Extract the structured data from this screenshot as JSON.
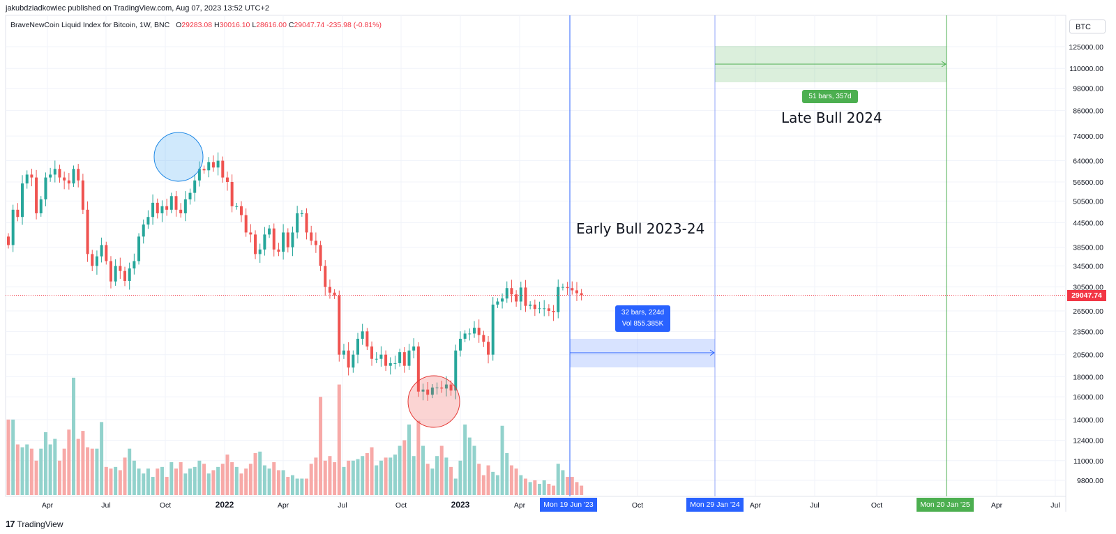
{
  "header": {
    "publisher_line": "jakubdziadkowiec published on TradingView.com, Aug 07, 2023 13:52 UTC+2",
    "symbol_line": "BraveNewCoin Liquid Index for Bitcoin, 1W, BNC",
    "ohlc": {
      "o_label": "O",
      "o": "29283.08",
      "h_label": "H",
      "h": "30016.10",
      "l_label": "L",
      "l": "28616.00",
      "c_label": "C",
      "c": "29047.74",
      "change": "-235.98 (-0.81%)"
    },
    "currency_button": "BTC"
  },
  "footer": {
    "brand": "TradingView",
    "logo_glyph": "17"
  },
  "annotations": {
    "early_bull": "Early Bull 2023-24",
    "late_bull": "Late Bull 2024",
    "early_range_line1": "32 bars, 224d",
    "early_range_line2": "Vol 855.385K",
    "late_range": "51 bars, 357d"
  },
  "date_markers": {
    "start": "Mon 19 Jun '23",
    "mid": "Mon 29 Jan '24",
    "end": "Mon 20 Jan '25"
  },
  "colors": {
    "up": "#26a69a",
    "down": "#ef5350",
    "vol_up": "#92d2cc",
    "vol_down": "#f7a9a7",
    "blue": "#2962ff",
    "green": "#4caf50",
    "grid": "#f0f3fa",
    "price_line": "#f23645"
  },
  "chart_data": {
    "type": "candlestick",
    "title": "BraveNewCoin Liquid Index for Bitcoin, 1W, BNC",
    "y_scale": "log",
    "y_ticks": [
      125000,
      110000,
      98000,
      86000,
      74000,
      64000,
      56500,
      50500,
      44500,
      38500,
      34500,
      30500,
      26500,
      23500,
      20500,
      18000,
      16000,
      14000,
      12400,
      11000,
      9800
    ],
    "y_tick_labels": [
      "125000.00",
      "110000.00",
      "98000.00",
      "86000.00",
      "74000.00",
      "64000.00",
      "56500.00",
      "50500.00",
      "44500.00",
      "38500.00",
      "34500.00",
      "30500.00",
      "26500.00",
      "23500.00",
      "20500.00",
      "18000.00",
      "16000.00",
      "14000.00",
      "12400.00",
      "11000.00",
      "9800.00"
    ],
    "x_tick_labels": [
      "Apr",
      "Jul",
      "Oct",
      "2022",
      "Apr",
      "Jul",
      "Oct",
      "2023",
      "Apr",
      "Oct",
      "Apr",
      "Jul",
      "Oct",
      "Apr",
      "Jul"
    ],
    "last_price": "29047.74",
    "weekly_closes": [
      39000,
      48000,
      46000,
      56000,
      59000,
      58000,
      47000,
      51000,
      58000,
      59000,
      61000,
      58000,
      57000,
      56000,
      61000,
      57000,
      48000,
      37000,
      34500,
      36500,
      39000,
      35500,
      31500,
      34500,
      33500,
      31600,
      34000,
      35500,
      41000,
      44000,
      46000,
      50000,
      47000,
      49000,
      48000,
      52000,
      48000,
      47000,
      51000,
      53000,
      57000,
      61000,
      60500,
      63500,
      61500,
      64000,
      58000,
      56500,
      49000,
      49000,
      46500,
      42000,
      41500,
      37000,
      38000,
      41500,
      43000,
      38000,
      37500,
      42000,
      38500,
      42000,
      47000,
      47000,
      42000,
      40000,
      39000,
      34500,
      30500,
      29500,
      29000,
      20500,
      21000,
      19000,
      20500,
      22500,
      23500,
      21500,
      20000,
      20000,
      20500,
      19200,
      19500,
      19500,
      20800,
      19200,
      21000,
      21500,
      16500,
      16700,
      16200,
      16900,
      16900,
      16800,
      17200,
      16600,
      21000,
      22500,
      23200,
      23200,
      24000,
      23000,
      22100,
      20500,
      27500,
      28000,
      28500,
      30300,
      29200,
      28000,
      30400,
      27300,
      27500,
      26800,
      26900,
      26900,
      26500,
      26300,
      30500,
      30500,
      30300,
      29900,
      29400,
      29047
    ],
    "volumes": [
      14000,
      14000,
      12100,
      11900,
      12100,
      11800,
      11000,
      11800,
      13000,
      12100,
      12500,
      11000,
      11800,
      13200,
      17900,
      12500,
      13100,
      11900,
      11800,
      11800,
      13800,
      10600,
      10500,
      10600,
      10400,
      11200,
      11800,
      11000,
      10500,
      10200,
      10500,
      10000,
      10500,
      10600,
      10000,
      10900,
      10500,
      10900,
      10200,
      10500,
      10600,
      11000,
      10800,
      10200,
      10400,
      10600,
      10800,
      11400,
      10900,
      10600,
      10200,
      10500,
      10800,
      11500,
      11600,
      10700,
      10500,
      10900,
      10400,
      10400,
      10000,
      10100,
      9900,
      9900,
      9900,
      10800,
      11200,
      16000,
      11000,
      11300,
      10900,
      17200,
      10600,
      11000,
      11000,
      11100,
      11300,
      11500,
      11900,
      10700,
      11000,
      11200,
      11200,
      11400,
      12000,
      12400,
      13600,
      11300,
      13900,
      12000,
      10800,
      10500,
      11300,
      12000,
      11200,
      10600,
      9900,
      11000,
      13600,
      12600,
      12000,
      10800,
      10100,
      10700,
      10300,
      10100,
      13500,
      11500,
      10700,
      10500,
      10100,
      9900,
      9700,
      9800,
      9600,
      9800,
      9600,
      9500,
      10800,
      10400,
      10000,
      10000,
      9700,
      9500
    ]
  }
}
